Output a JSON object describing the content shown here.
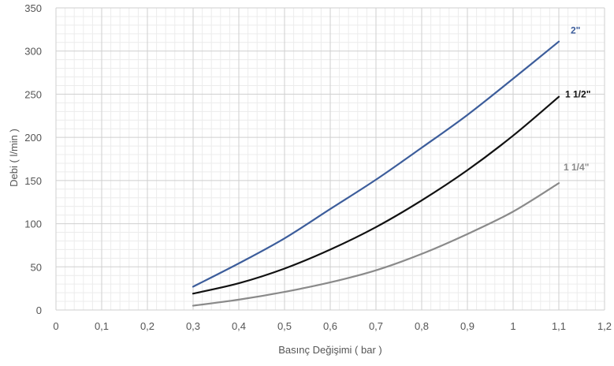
{
  "chart_data": {
    "type": "line",
    "title": "",
    "xlabel": "Basınç Değişimi ( bar )",
    "ylabel": "Debi ( l/min )",
    "xlim": [
      0,
      1.2
    ],
    "ylim": [
      0,
      350
    ],
    "x_ticks": [
      "0",
      "0,1",
      "0,2",
      "0,3",
      "0,4",
      "0,5",
      "0,6",
      "0,7",
      "0,8",
      "0,9",
      "1",
      "1,1",
      "1,2"
    ],
    "y_ticks": [
      "0",
      "50",
      "100",
      "150",
      "200",
      "250",
      "300",
      "350"
    ],
    "grid": "major and minor",
    "x": [
      0.3,
      0.4,
      0.5,
      0.6,
      0.7,
      0.8,
      0.9,
      1.0,
      1.1
    ],
    "series": [
      {
        "name": "2\"",
        "color": "#3c5d9b",
        "values": [
          27,
          54,
          83,
          117,
          151,
          188,
          226,
          268,
          311
        ]
      },
      {
        "name": "1 1/2\"",
        "color": "#111111",
        "values": [
          19,
          31,
          48,
          70,
          96,
          127,
          162,
          202,
          247
        ]
      },
      {
        "name": "1 1/4\"",
        "color": "#8a8a8a",
        "values": [
          5,
          12,
          21,
          32,
          46,
          65,
          88,
          114,
          147
        ]
      }
    ]
  }
}
